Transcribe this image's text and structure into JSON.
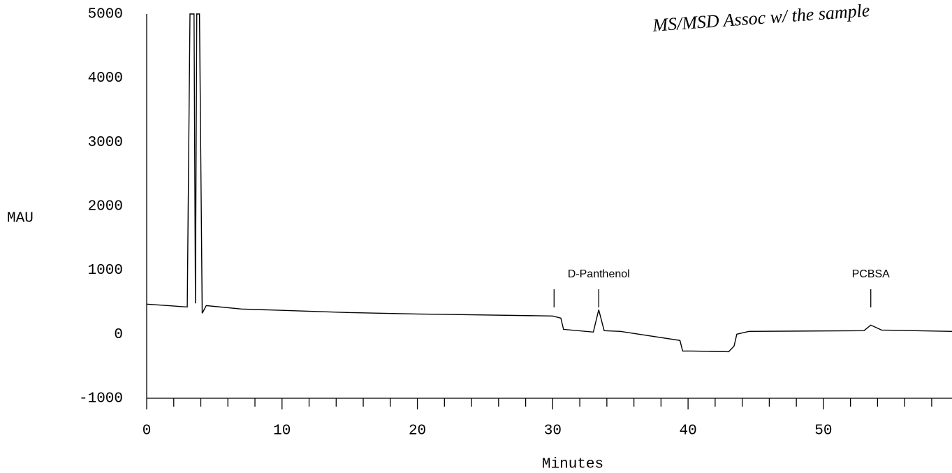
{
  "chart_data": {
    "type": "line",
    "x_label": "Minutes",
    "y_label": "MAU",
    "note": "MS/MSD Assoc w/ the sample",
    "x": [
      0,
      3.0,
      3.2,
      3.5,
      3.6,
      3.7,
      3.9,
      4.1,
      4.4,
      7,
      15,
      20,
      30,
      30.6,
      30.8,
      33,
      33.4,
      33.8,
      35,
      39.4,
      39.6,
      40.3,
      43,
      43.4,
      43.6,
      44.5,
      53,
      53.5,
      54.3,
      59.5
    ],
    "series": [
      {
        "color": "#000000",
        "values": [
          469,
          425,
          5000,
          5000,
          480,
          5000,
          5000,
          327,
          447,
          393,
          338,
          316,
          284,
          251,
          76,
          33,
          382,
          55,
          44,
          -98,
          -262,
          -262,
          -273,
          -185,
          0,
          44,
          55,
          142,
          65,
          44
        ]
      }
    ],
    "annotations": [
      {
        "text": "D-Panthenol",
        "x": 33.4,
        "marker_x": [
          30.1,
          33.4
        ]
      },
      {
        "text": "PCBSA",
        "x": 53.5,
        "marker_x": [
          53.5
        ]
      }
    ],
    "xlim": [
      0,
      59.5
    ],
    "xticks": [
      0,
      10,
      20,
      30,
      40,
      50
    ],
    "xminorticks": [
      2,
      4,
      6,
      8,
      12,
      14,
      16,
      18,
      22,
      24,
      26,
      28,
      32,
      34,
      36,
      38,
      42,
      44,
      46,
      48,
      52,
      54,
      56,
      58
    ],
    "ylim": [
      -1000,
      5000
    ],
    "yticks": [
      -1000,
      0,
      1000,
      2000,
      3000,
      4000,
      5000
    ]
  }
}
